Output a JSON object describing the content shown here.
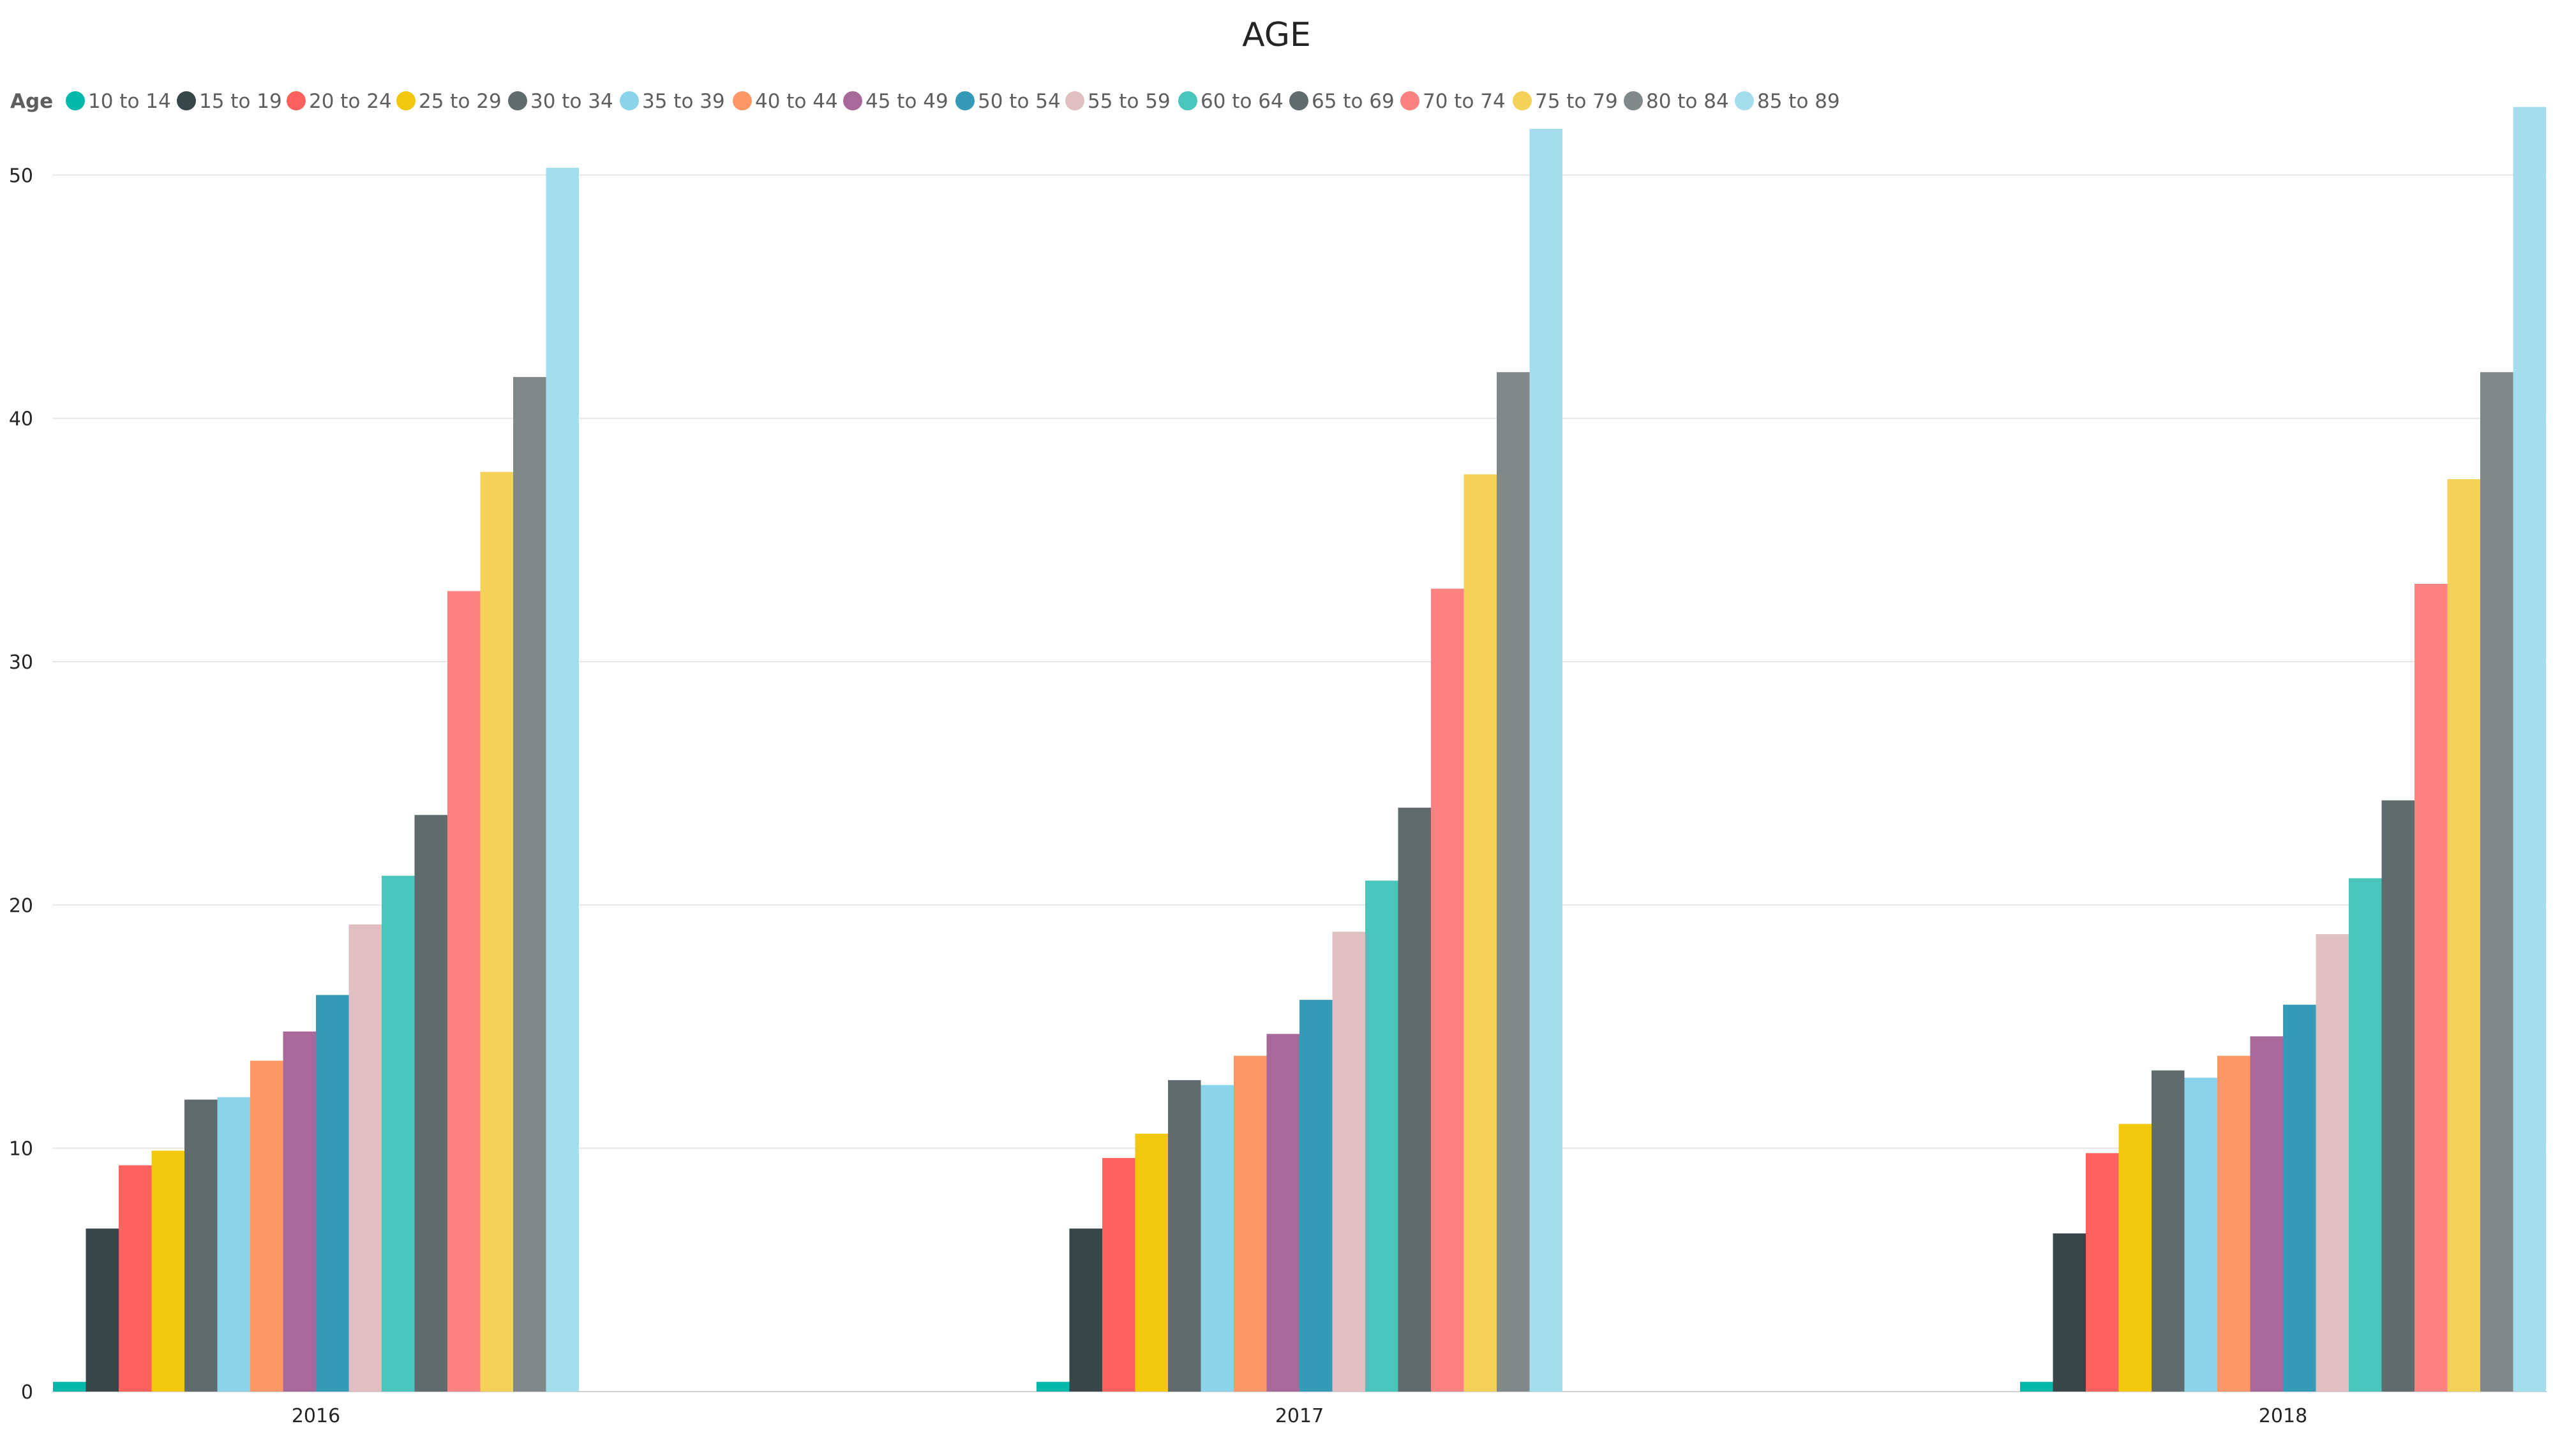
{
  "chart_data": {
    "type": "bar",
    "title": "AGE",
    "legend": {
      "title": "Age",
      "placement": "top-left"
    },
    "categories": [
      "2016",
      "2017",
      "2018"
    ],
    "ylim": [
      0,
      53
    ],
    "yticks": [
      0,
      10,
      20,
      30,
      40,
      50
    ],
    "grid": true,
    "series": [
      {
        "name": "10 to 14",
        "color": "#01B8AA",
        "values": [
          0.4,
          0.4,
          0.4
        ]
      },
      {
        "name": "15 to 19",
        "color": "#374649",
        "values": [
          6.7,
          6.7,
          6.5
        ]
      },
      {
        "name": "20 to 24",
        "color": "#FD625E",
        "values": [
          9.3,
          9.6,
          9.8
        ]
      },
      {
        "name": "25 to 29",
        "color": "#F2C80F",
        "values": [
          9.9,
          10.6,
          11.0
        ]
      },
      {
        "name": "30 to 34",
        "color": "#5F6B6D",
        "values": [
          12.0,
          12.8,
          13.2
        ]
      },
      {
        "name": "35 to 39",
        "color": "#8AD4EB",
        "values": [
          12.1,
          12.6,
          12.9
        ]
      },
      {
        "name": "40 to 44",
        "color": "#FE9666",
        "values": [
          13.6,
          13.8,
          13.8
        ]
      },
      {
        "name": "45 to 49",
        "color": "#A66999",
        "values": [
          14.8,
          14.7,
          14.6
        ]
      },
      {
        "name": "50 to 54",
        "color": "#3599B8",
        "values": [
          16.3,
          16.1,
          15.9
        ]
      },
      {
        "name": "55 to 59",
        "color": "#DFBFBF",
        "values": [
          19.2,
          18.9,
          18.8
        ]
      },
      {
        "name": "60 to 64",
        "color": "#4AC5BB",
        "values": [
          21.2,
          21.0,
          21.1
        ]
      },
      {
        "name": "65 to 69",
        "color": "#5F6B6D",
        "values": [
          23.7,
          24.0,
          24.3
        ]
      },
      {
        "name": "70 to 74",
        "color": "#FB8281",
        "values": [
          32.9,
          33.0,
          33.2
        ]
      },
      {
        "name": "75 to 79",
        "color": "#F4D25A",
        "values": [
          37.8,
          37.7,
          37.5
        ]
      },
      {
        "name": "80 to 84",
        "color": "#7F898A",
        "values": [
          41.7,
          41.9,
          41.9
        ]
      },
      {
        "name": "85 to 89",
        "color": "#A4DDEE",
        "values": [
          50.3,
          51.9,
          52.8
        ]
      }
    ]
  }
}
